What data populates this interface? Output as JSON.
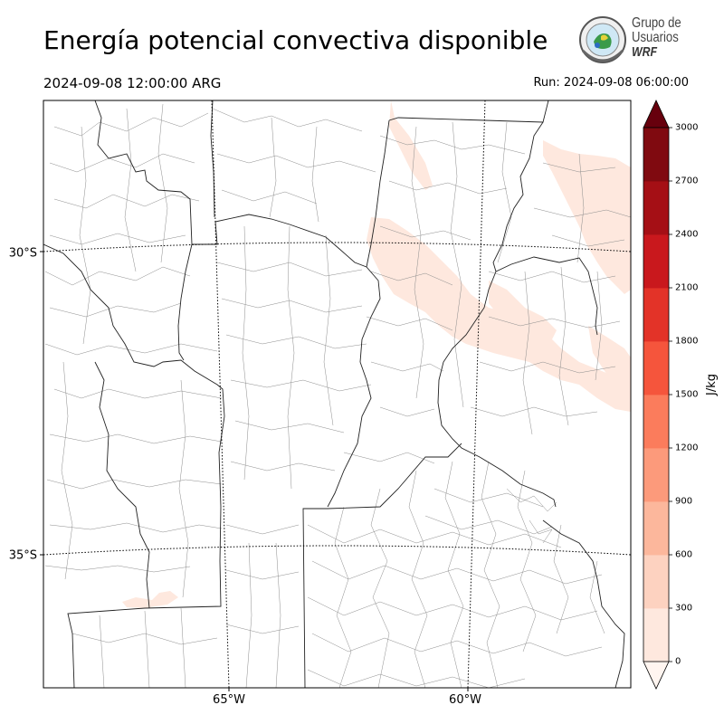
{
  "header": {
    "title": "Energía potencial convectiva disponible",
    "valid_time": "2024-09-08 12:00:00 ARG",
    "run_time": "Run: 2024-09-08 06:00:00"
  },
  "logo": {
    "line1": "Grupo de",
    "line2": "Usuarios",
    "line3": "WRF"
  },
  "map": {
    "lat_labels": [
      "30°S",
      "35°S"
    ],
    "lon_labels": [
      "65°W",
      "60°W"
    ]
  },
  "colorbar": {
    "unit": "J/kg",
    "ticks": [
      "0",
      "300",
      "600",
      "900",
      "1200",
      "1500",
      "1800",
      "2100",
      "2400",
      "2700",
      "3000"
    ],
    "colors": [
      "#fee8de",
      "#fdd2c0",
      "#fcb79c",
      "#fc9a7b",
      "#fb7c5c",
      "#f5553c",
      "#e33328",
      "#c9181d",
      "#a50f15",
      "#800a10"
    ],
    "extend_top_color": "#67000d",
    "extend_bottom_color": "#fff5f0"
  }
}
